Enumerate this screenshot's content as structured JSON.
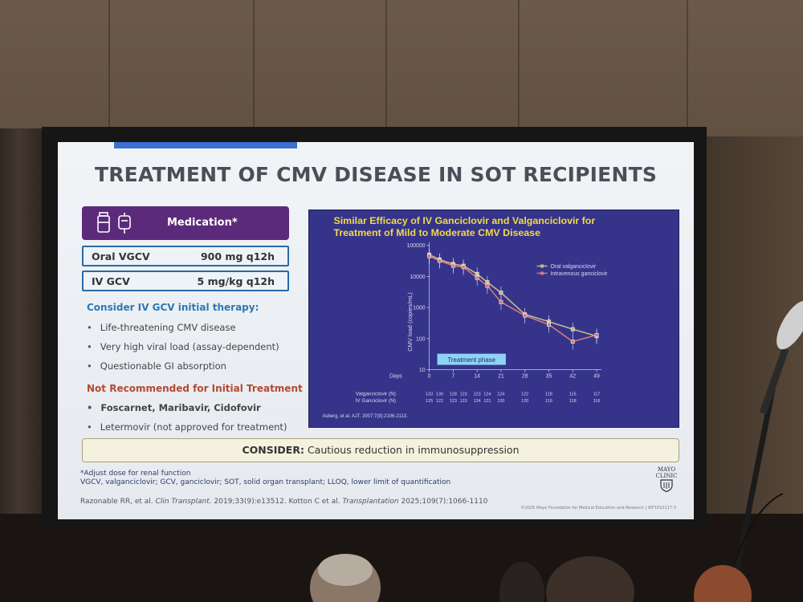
{
  "slide": {
    "title": "TREATMENT OF CMV DISEASE IN SOT RECIPIENTS",
    "medication_header": "Medication*",
    "doses": [
      {
        "name": "Oral VGCV",
        "value": "900 mg q12h"
      },
      {
        "name": "IV GCV",
        "value": "5 mg/kg q12h"
      }
    ],
    "consider_heading": "Consider IV GCV initial therapy:",
    "consider_items": [
      "Life-threatening CMV disease",
      "Very high viral load (assay-dependent)",
      "Questionable GI absorption"
    ],
    "not_recommended_heading": "Not Recommended for Initial Treatment",
    "not_recommended_items": [
      "Foscarnet, Maribavir, Cidofovir",
      "Letermovir (not approved for treatment)"
    ],
    "consider_box_label": "CONSIDER:",
    "consider_box_text": "Cautious reduction in immunosuppression",
    "footnote_dose": "*Adjust dose for renal function",
    "footnote_abbrev": "VGCV, valganciclovir; GCV, ganciclovir; SOT, solid organ transplant; LLOQ, lower limit of quantification",
    "ref_part1": "Razonable RR, et al. ",
    "ref_journal1": "Clin Transplant.",
    "ref_part2": " 2019;33(9):e13512. Kotton C et al. ",
    "ref_journal2": "Transplantation",
    "ref_part3": " 2025;109(7):1066-1110",
    "copyright": "©2025 Mayo Foundation for Medical Education and Research | WF1010117-3",
    "logo_line1": "MAYO",
    "logo_line2": "CLINIC"
  },
  "chart": {
    "title_line1": "Similar Efficacy of IV Ganciclovir and Valganciclovir for",
    "title_line2": "Treatment of Mild to Moderate CMV Disease",
    "ylabel": "CMV load (copies/mL)",
    "xlabel_prefix": "Days",
    "phase_label": "Treatment phase",
    "citation": "Asberg, et al. AJT. 2007;7(9):2106-2113.",
    "n_row_labels": [
      "Valganciclovir (N)",
      "IV Ganciclovir (N)"
    ],
    "legend": [
      "Oral valganciclovir",
      "Intravenous ganciclovir"
    ],
    "colors": {
      "oral": "#c8b98a",
      "iv": "#cf7d7d",
      "background": "#35348a",
      "title": "#f2d94a"
    }
  },
  "chart_data": {
    "type": "line",
    "title": "Similar Efficacy of IV Ganciclovir and Valganciclovir for Treatment of Mild to Moderate CMV Disease",
    "xlabel": "Days",
    "ylabel": "CMV load (copies/mL)",
    "yscale": "log",
    "ylim": [
      10,
      100000
    ],
    "yticks": [
      "100000",
      "10000",
      "1000",
      "100",
      "10"
    ],
    "xticks": [
      "0",
      "7",
      "14",
      "21",
      "28",
      "35",
      "42",
      "49"
    ],
    "series": [
      {
        "name": "Oral valganciclovir",
        "x": [
          0,
          3,
          7,
          10,
          14,
          17,
          21,
          28,
          35,
          42,
          49
        ],
        "y": [
          50000,
          35000,
          25000,
          22000,
          12000,
          6500,
          3000,
          600,
          350,
          200,
          120
        ]
      },
      {
        "name": "Intravenous ganciclovir",
        "x": [
          0,
          3,
          7,
          10,
          14,
          17,
          21,
          28,
          35,
          42,
          49
        ],
        "y": [
          45000,
          32000,
          22000,
          20000,
          9000,
          5000,
          1500,
          550,
          280,
          80,
          130
        ]
      }
    ],
    "n_x": [
      0,
      3,
      7,
      10,
      14,
      17,
      21,
      28,
      35,
      42,
      49
    ],
    "n_valganciclovir": [
      "133",
      "130",
      "128",
      "123",
      "123",
      "124",
      "124",
      "122",
      "118",
      "115",
      "117"
    ],
    "n_iv_ganciclovir": [
      "125",
      "122",
      "123",
      "123",
      "124",
      "121",
      "120",
      "120",
      "119",
      "118",
      "116"
    ],
    "legend_position": "top-right",
    "grid": false
  }
}
